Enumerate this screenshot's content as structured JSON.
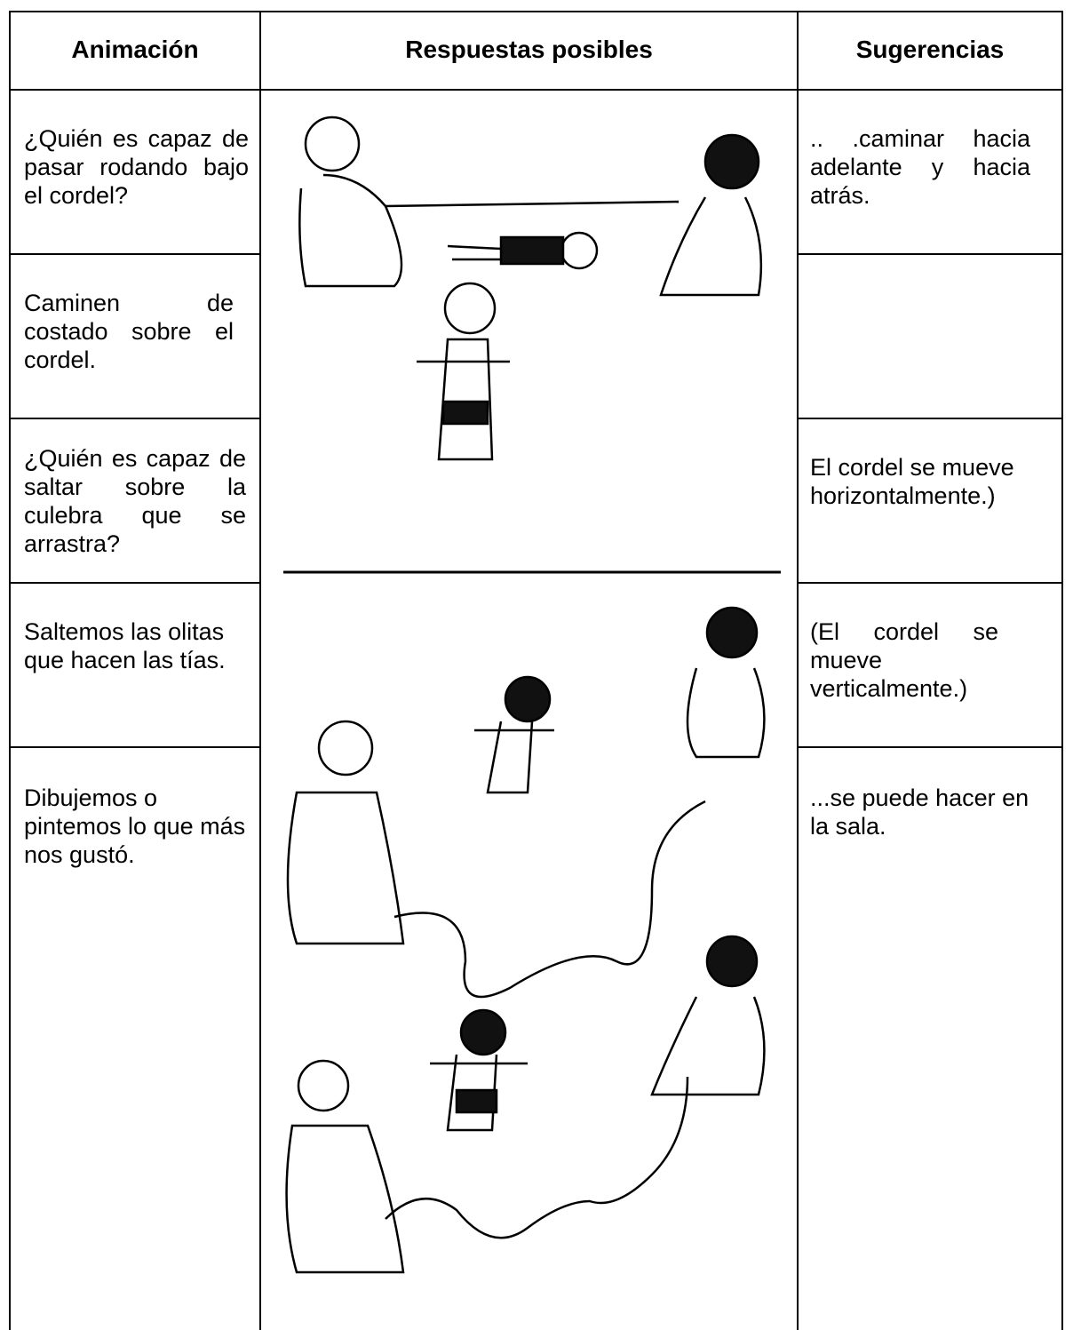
{
  "header": {
    "columns": [
      "Animación",
      "Respuestas posibles",
      "Sugerencias"
    ]
  },
  "rows": [
    {
      "animacion": "¿Quién es capaz de pasar rodando bajo el cordel?",
      "sugerencia": ".. .caminar hacia adelante y hacia atrás."
    },
    {
      "animacion": "Caminen de costado sobre el cordel."
    },
    {
      "animacion": "¿Quién es capaz de saltar sobre la culebra que se arrastra?",
      "sugerencia": "El cordel se mueve horizontalmente.)"
    },
    {
      "animacion": "Saltemos las olitas que hacen las tías.",
      "sugerencia": "(El cordel se mueve verticalmente.)"
    },
    {
      "animacion": "Dibujemos o pintemos lo que más nos gustó.",
      "sugerencia": "...se puede hacer en la sala."
    }
  ]
}
